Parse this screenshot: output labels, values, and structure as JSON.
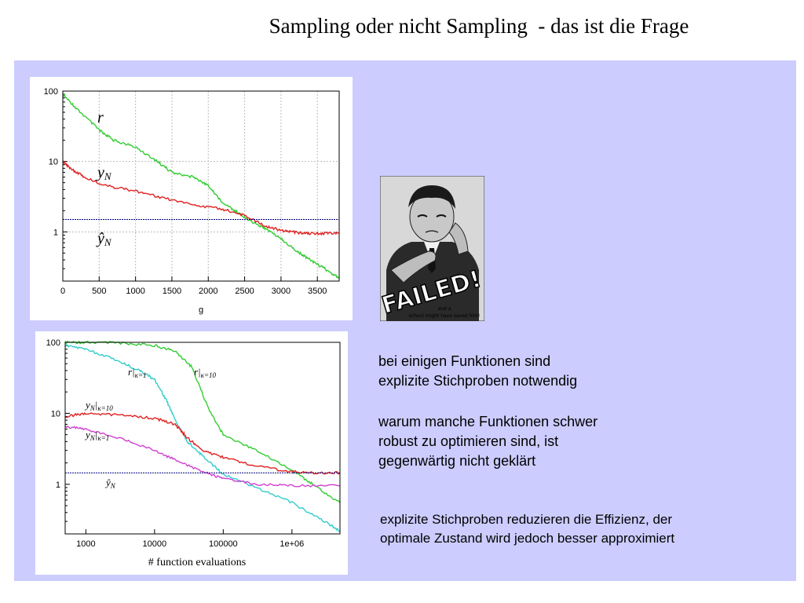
{
  "slide": {
    "title": "Sampling oder nicht Sampling  - das ist die Frage",
    "text1_line1": "bei einigen Funktionen sind",
    "text1_line2": "explizite Stichproben notwendig",
    "text2_line1": "warum manche Funktionen schwer",
    "text2_line2": "robust zu optimieren sind, ist",
    "text2_line3": "gegenwärtig nicht geklärt",
    "text3_line1": "explizite Stichproben reduzieren die Effizienz, der",
    "text3_line2": "optimale Zustand wird jedoch besser approximiert",
    "colors": {
      "panel": "#ccccff",
      "green": "#33cc33",
      "red": "#e02020",
      "cyan": "#33cccc",
      "magenta": "#d040d0",
      "blue": "#000080"
    }
  },
  "poster": {
    "headline": "FAILED!",
    "caption_line1": "and a",
    "caption_line2": "school might have saved him!"
  },
  "chart_data": [
    {
      "type": "line",
      "xlabel": "g",
      "ylabel": "",
      "xlim": [
        0,
        3800
      ],
      "ylim": [
        0.2,
        100
      ],
      "yscale": "log",
      "x_ticks": [
        "0",
        "500",
        "1000",
        "1500",
        "2000",
        "2500",
        "3000",
        "3500"
      ],
      "y_ticks": [
        "100",
        "10",
        "1"
      ],
      "labels": {
        "r": "r",
        "yN": "y",
        "yN_sub": "N",
        "yhat": "ŷ",
        "yhat_sub": "N"
      },
      "series": [
        {
          "name": "r",
          "color": "#33cc33",
          "x": [
            0,
            200,
            500,
            700,
            1000,
            1300,
            1500,
            1800,
            2000,
            2200,
            2400,
            2600,
            2800,
            3000,
            3200,
            3400,
            3600,
            3800
          ],
          "y": [
            90,
            55,
            28,
            20,
            16,
            10,
            7,
            6,
            4.5,
            2.6,
            1.9,
            1.4,
            1.1,
            0.8,
            0.55,
            0.4,
            0.3,
            0.22
          ]
        },
        {
          "name": "yN",
          "color": "#e02020",
          "x": [
            0,
            100,
            300,
            600,
            1000,
            1400,
            1800,
            2200,
            2500,
            2800,
            3000,
            3200,
            3400,
            3600,
            3800
          ],
          "y": [
            10,
            8,
            6,
            4.5,
            3.8,
            3.0,
            2.4,
            2.1,
            1.7,
            1.2,
            1.05,
            0.98,
            0.95,
            0.95,
            0.95
          ]
        },
        {
          "name": "yhat",
          "color": "#000080",
          "x": [
            0,
            3800
          ],
          "y": [
            1.5,
            1.5
          ]
        }
      ]
    },
    {
      "type": "line",
      "xlabel": "# function evaluations",
      "ylabel": "",
      "xlim": [
        500,
        5000000
      ],
      "ylim": [
        0.2,
        100
      ],
      "xscale": "log",
      "yscale": "log",
      "x_ticks": [
        "1000",
        "10000",
        "100000",
        "1e+06"
      ],
      "y_ticks": [
        "100",
        "10",
        "1"
      ],
      "labels": {
        "r1": "r|",
        "r1_sub": "κ=1",
        "r10": "r|",
        "r10_sub": "κ=10",
        "y10": "y",
        "y10_sub": "N",
        "y10_cond": "|",
        "y10_k": "κ=10",
        "y1": "y",
        "y1_sub": "N",
        "y1_cond": "|",
        "y1_k": "κ=1",
        "yhat": "ŷ",
        "yhat_sub": "N"
      },
      "series": [
        {
          "name": "r|κ=10",
          "color": "#33cc33",
          "x": [
            500,
            1000,
            3000,
            10000,
            20000,
            35000,
            60000,
            100000,
            300000,
            1000000,
            2000000,
            5000000
          ],
          "y": [
            100,
            100,
            98,
            90,
            75,
            45,
            12,
            5,
            3,
            1.6,
            1.0,
            0.55
          ]
        },
        {
          "name": "r|κ=1",
          "color": "#33cccc",
          "x": [
            500,
            1000,
            3000,
            6000,
            10000,
            15000,
            20000,
            30000,
            50000,
            100000,
            300000,
            1000000,
            3000000,
            5000000
          ],
          "y": [
            90,
            80,
            55,
            40,
            30,
            15,
            8,
            4,
            2.5,
            1.4,
            0.9,
            0.55,
            0.3,
            0.22
          ]
        },
        {
          "name": "yN|κ=10",
          "color": "#e02020",
          "x": [
            500,
            1000,
            3000,
            10000,
            20000,
            30000,
            50000,
            100000,
            300000,
            1000000,
            2000000,
            5000000
          ],
          "y": [
            9,
            10,
            9.5,
            8.5,
            7,
            4.5,
            3,
            2.4,
            1.8,
            1.5,
            1.45,
            1.45
          ]
        },
        {
          "name": "yN|κ=1",
          "color": "#d040d0",
          "x": [
            500,
            1000,
            3000,
            10000,
            20000,
            50000,
            100000,
            300000,
            1000000,
            5000000
          ],
          "y": [
            6.5,
            6,
            4.5,
            3,
            2.2,
            1.5,
            1.2,
            1.0,
            0.95,
            0.95
          ]
        },
        {
          "name": "ŷN",
          "color": "#000080",
          "x": [
            500,
            5000000
          ],
          "y": [
            1.45,
            1.45
          ]
        }
      ]
    }
  ]
}
